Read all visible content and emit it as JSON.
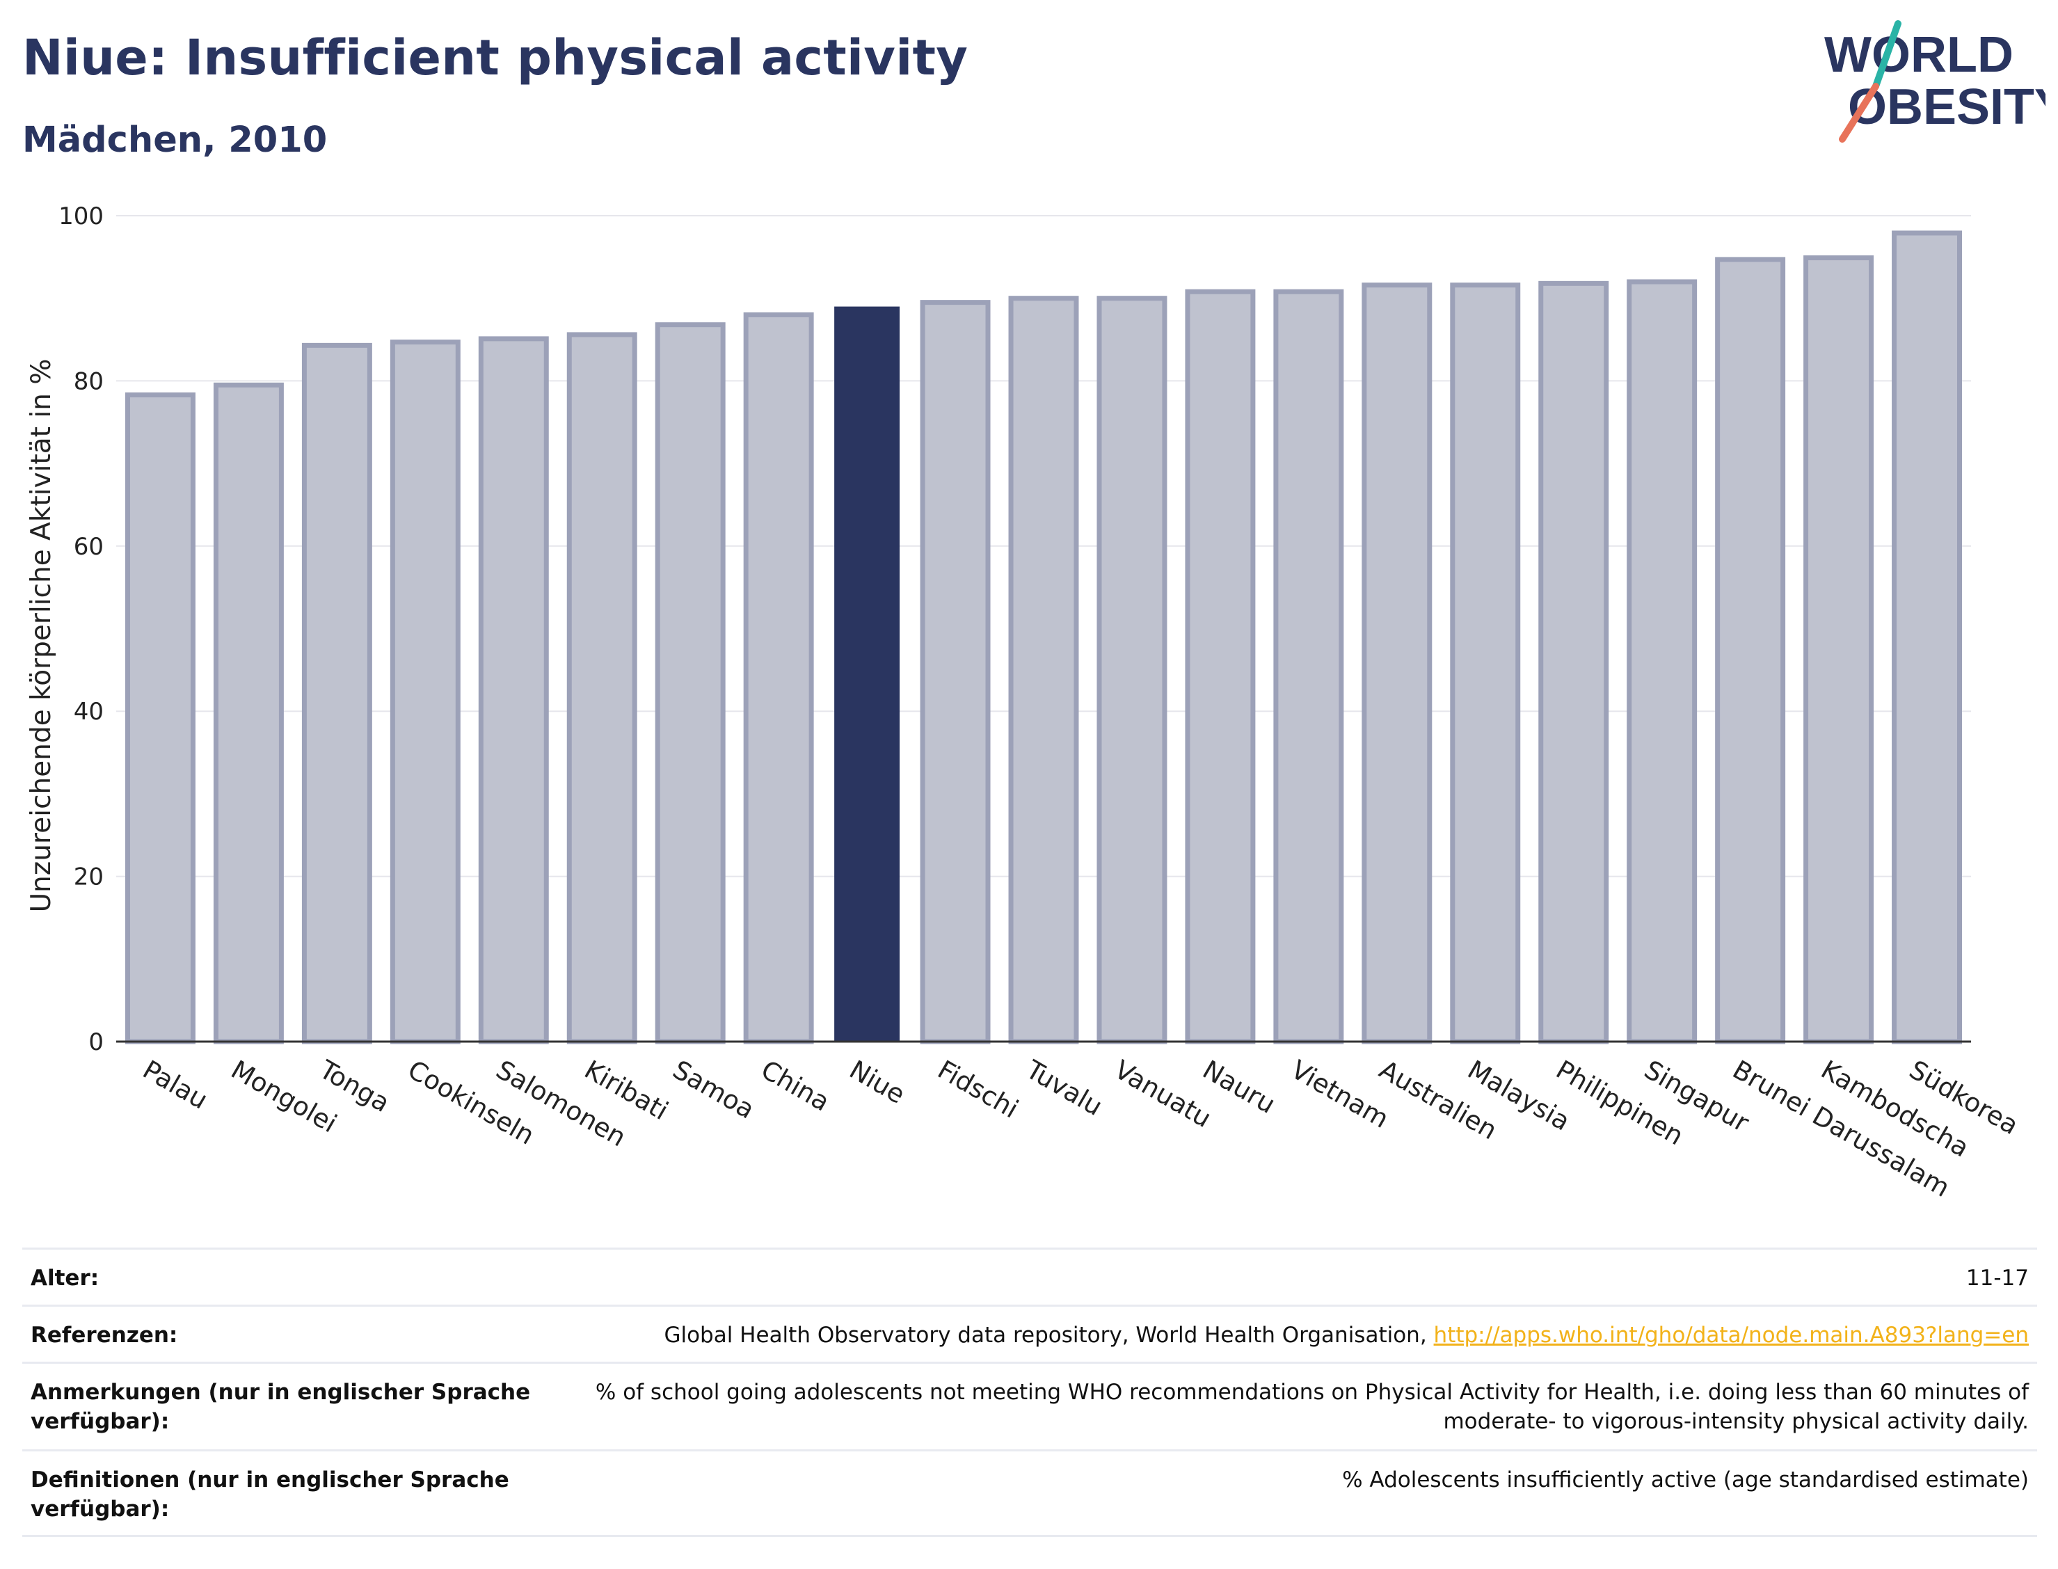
{
  "header": {
    "title": "Niue: Insufficient physical activity",
    "subtitle": "Mädchen, 2010"
  },
  "logo": {
    "line1": "WORLD",
    "line2": "OBESITY",
    "colors": {
      "text": "#2a3560",
      "slash_teal": "#2ab3a6",
      "slash_coral": "#e8735a"
    }
  },
  "colors": {
    "highlight_bar": "#2a3560",
    "bar_fill": "#bfc2cf",
    "bar_stroke": "#9ca1b8",
    "grid": "#e6e6ec",
    "axis": "#333333"
  },
  "chart_data": {
    "type": "bar",
    "title": "Niue: Insufficient physical activity",
    "subtitle": "Mädchen, 2010",
    "xlabel": "",
    "ylabel": "Unzureichende körperliche Aktivität in %",
    "ylim": [
      0,
      100
    ],
    "yticks": [
      0,
      20,
      40,
      60,
      80,
      100
    ],
    "grid": true,
    "highlight": "Niue",
    "categories": [
      "Palau",
      "Mongolei",
      "Tonga",
      "Cookinseln",
      "Salomonen",
      "Kiribati",
      "Samoa",
      "China",
      "Niue",
      "Fidschi",
      "Tuvalu",
      "Vanuatu",
      "Nauru",
      "Vietnam",
      "Australien",
      "Malaysia",
      "Philippinen",
      "Singapur",
      "Brunei Darussalam",
      "Kambodscha",
      "Südkorea"
    ],
    "values": [
      78.3,
      79.5,
      84.3,
      84.7,
      85.1,
      85.6,
      86.8,
      88.0,
      89.0,
      89.5,
      90.0,
      90.0,
      90.8,
      90.8,
      91.6,
      91.6,
      91.8,
      92.0,
      94.7,
      94.9,
      97.9
    ]
  },
  "meta": {
    "age_label": "Alter:",
    "age_value": "11-17",
    "refs_label": "Referenzen:",
    "refs_text": "Global Health Observatory data repository, World Health Organisation, ",
    "refs_link": "http://apps.who.int/gho/data/node.main.A893?lang=en",
    "notes_label": "Anmerkungen (nur in englischer Sprache verfügbar):",
    "notes_value": "% of school going adolescents not meeting WHO recommendations on Physical Activity for Health, i.e. doing less than 60 minutes of moderate- to vigorous-intensity physical activity daily.",
    "defs_label": "Definitionen (nur in englischer Sprache verfügbar):",
    "defs_value": "% Adolescents insufficiently active (age standardised estimate)"
  }
}
